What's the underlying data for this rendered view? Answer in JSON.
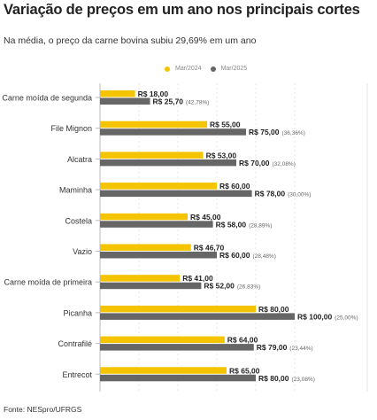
{
  "title": "Variação de preços em um ano nos principais cortes",
  "subtitle": "Na média, o preço da carne bovina subiu 29,69% em um ano",
  "source": "Fonte: NESpro/UFRGS",
  "colors": {
    "mar2024": "#f5c400",
    "mar2025": "#666666",
    "label": "#222222",
    "pct": "#666666",
    "axis": "#bbbbbb",
    "grid": "#e4e4e4"
  },
  "chart_data": {
    "type": "bar",
    "orientation": "horizontal",
    "title": "Variação de preços em um ano nos principais cortes",
    "subtitle": "Na média, o preço da carne bovina subiu 29,69% em um ano",
    "legend_position": "top-center",
    "grid": true,
    "xlim": [
      0,
      115
    ],
    "categories": [
      "Carne moída de segunda",
      "File Mignon",
      "Alcatra",
      "Maminha",
      "Costela",
      "Vazio",
      "Carne moída de primeira",
      "Picanha",
      "Contrafilé",
      "Entrecot"
    ],
    "series": [
      {
        "name": "Mar/2024",
        "color": "#f5c400",
        "values": [
          18.0,
          55.0,
          53.0,
          60.0,
          45.0,
          46.7,
          41.0,
          80.0,
          64.0,
          65.0
        ],
        "labels": [
          "R$ 18,00",
          "R$ 55,00",
          "R$ 53,00",
          "R$ 60,00",
          "R$ 45,00",
          "R$ 46,70",
          "R$ 41,00",
          "R$ 80,00",
          "R$ 64,00",
          "R$ 65,00"
        ]
      },
      {
        "name": "Mar/2025",
        "color": "#666666",
        "values": [
          25.7,
          75.0,
          70.0,
          78.0,
          58.0,
          60.0,
          52.0,
          100.0,
          79.0,
          80.0
        ],
        "labels": [
          "R$ 25,70",
          "R$ 75,00",
          "R$ 70,00",
          "R$ 78,00",
          "R$ 58,00",
          "R$ 60,00",
          "R$ 52,00",
          "R$ 100,00",
          "R$ 79,00",
          "R$ 80,00"
        ],
        "pct_labels": [
          "(42,78%)",
          "(36,36%)",
          "(32,08%)",
          "(30,00%)",
          "(28,89%)",
          "(28,48%)",
          "(26,83%)",
          "(25,00%)",
          "(23,44%)",
          "(23,08%)"
        ]
      }
    ]
  }
}
